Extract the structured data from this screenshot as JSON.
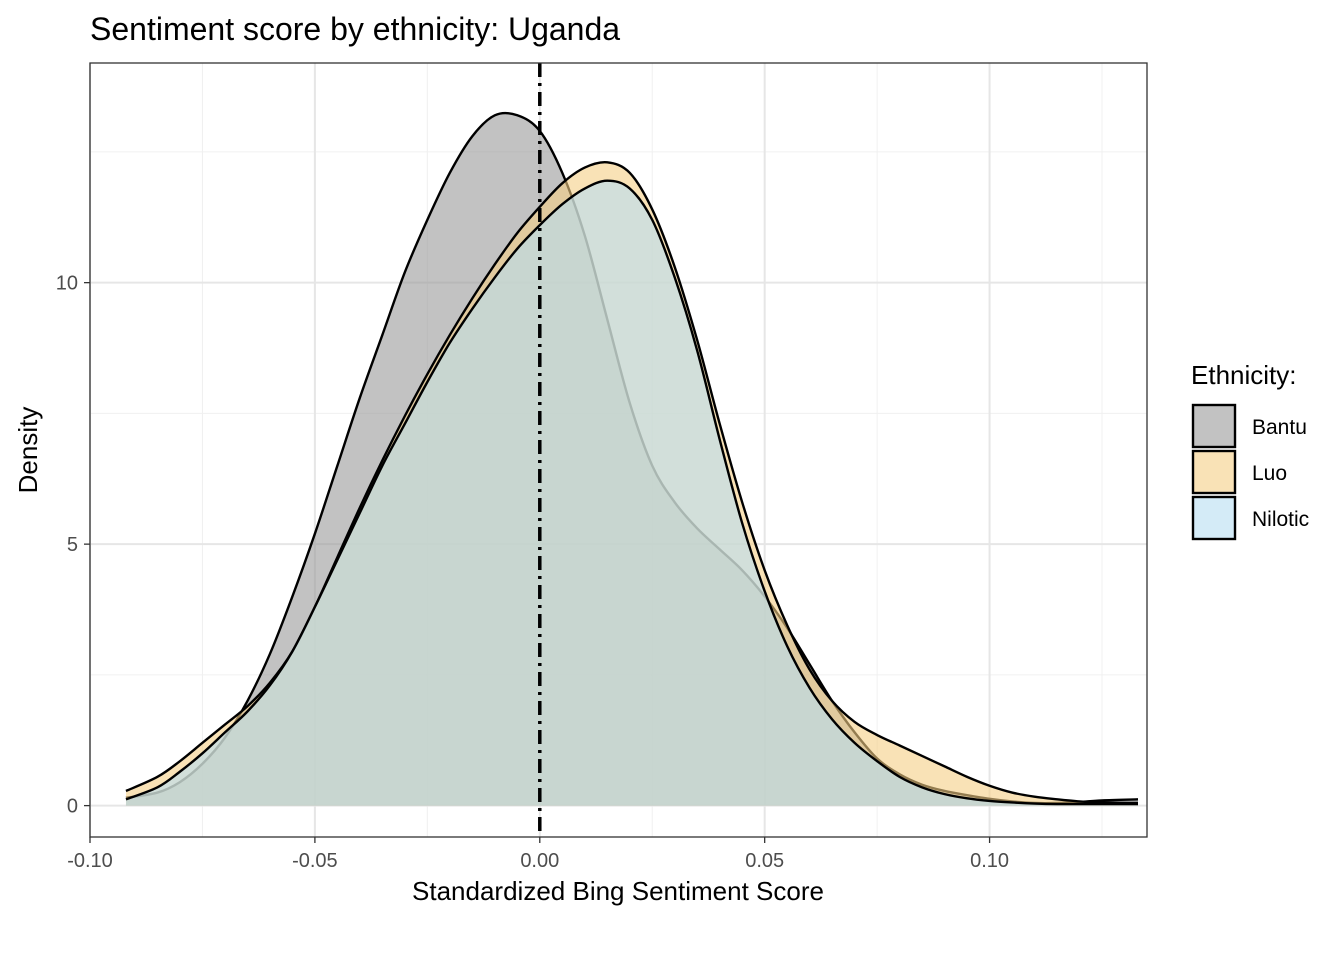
{
  "chart_data": {
    "type": "area",
    "title": "Sentiment score by ethnicity: Uganda",
    "xlabel": "Standardized Bing Sentiment Score",
    "ylabel": "Density",
    "xlim": [
      -0.1,
      0.135
    ],
    "ylim": [
      -0.6,
      14.2
    ],
    "x_ticks": [
      -0.1,
      -0.05,
      0.0,
      0.05,
      0.1
    ],
    "x_tick_labels": [
      "-0.10",
      "-0.05",
      "0.00",
      "0.05",
      "0.10"
    ],
    "y_ticks": [
      0,
      5,
      10
    ],
    "y_tick_labels": [
      "0",
      "5",
      "10"
    ],
    "grid": true,
    "legend": {
      "title": "Ethnicity:",
      "placement": "right"
    },
    "reference_line": {
      "x": 0.0,
      "style": "dot-dash"
    },
    "series": [
      {
        "name": "Bantu",
        "color": "#999999",
        "x": [
          -0.092,
          -0.085,
          -0.08,
          -0.075,
          -0.07,
          -0.065,
          -0.06,
          -0.055,
          -0.05,
          -0.045,
          -0.04,
          -0.035,
          -0.03,
          -0.025,
          -0.02,
          -0.015,
          -0.01,
          -0.005,
          0.0,
          0.005,
          0.01,
          0.015,
          0.02,
          0.025,
          0.03,
          0.035,
          0.04,
          0.045,
          0.05,
          0.055,
          0.06,
          0.065,
          0.07,
          0.075,
          0.08,
          0.085,
          0.09,
          0.095,
          0.1,
          0.105,
          0.11,
          0.115,
          0.12,
          0.125,
          0.133
        ],
        "y": [
          0.15,
          0.25,
          0.45,
          0.8,
          1.3,
          2.0,
          2.9,
          4.0,
          5.2,
          6.5,
          7.8,
          9.0,
          10.2,
          11.2,
          12.1,
          12.8,
          13.2,
          13.2,
          12.9,
          12.1,
          10.9,
          9.3,
          7.7,
          6.5,
          5.8,
          5.3,
          4.9,
          4.5,
          4.0,
          3.4,
          2.7,
          2.0,
          1.4,
          0.9,
          0.6,
          0.4,
          0.28,
          0.2,
          0.13,
          0.08,
          0.05,
          0.05,
          0.07,
          0.1,
          0.12
        ]
      },
      {
        "name": "Luo",
        "color": "#f5cf86",
        "x": [
          -0.092,
          -0.085,
          -0.08,
          -0.075,
          -0.07,
          -0.065,
          -0.06,
          -0.055,
          -0.05,
          -0.045,
          -0.04,
          -0.035,
          -0.03,
          -0.025,
          -0.02,
          -0.015,
          -0.01,
          -0.005,
          0.0,
          0.005,
          0.01,
          0.015,
          0.02,
          0.025,
          0.03,
          0.035,
          0.04,
          0.045,
          0.05,
          0.055,
          0.06,
          0.065,
          0.07,
          0.075,
          0.08,
          0.085,
          0.09,
          0.095,
          0.1,
          0.105,
          0.11,
          0.115,
          0.12,
          0.125,
          0.133
        ],
        "y": [
          0.28,
          0.55,
          0.85,
          1.2,
          1.55,
          1.9,
          2.35,
          2.95,
          3.8,
          4.75,
          5.7,
          6.6,
          7.45,
          8.25,
          9.0,
          9.7,
          10.35,
          10.95,
          11.45,
          11.9,
          12.2,
          12.3,
          12.1,
          11.4,
          10.3,
          8.9,
          7.3,
          5.8,
          4.5,
          3.45,
          2.6,
          2.0,
          1.6,
          1.35,
          1.15,
          0.95,
          0.75,
          0.55,
          0.38,
          0.25,
          0.17,
          0.12,
          0.08,
          0.06,
          0.05
        ]
      },
      {
        "name": "Nilotic",
        "color": "#b8ddf2",
        "x": [
          -0.092,
          -0.085,
          -0.08,
          -0.075,
          -0.07,
          -0.065,
          -0.06,
          -0.055,
          -0.05,
          -0.045,
          -0.04,
          -0.035,
          -0.03,
          -0.025,
          -0.02,
          -0.015,
          -0.01,
          -0.005,
          0.0,
          0.005,
          0.01,
          0.015,
          0.02,
          0.025,
          0.03,
          0.035,
          0.04,
          0.045,
          0.05,
          0.055,
          0.06,
          0.065,
          0.07,
          0.075,
          0.08,
          0.085,
          0.09,
          0.095,
          0.1,
          0.105,
          0.11,
          0.115,
          0.12,
          0.125,
          0.133
        ],
        "y": [
          0.12,
          0.35,
          0.65,
          1.0,
          1.4,
          1.8,
          2.3,
          2.95,
          3.8,
          4.7,
          5.6,
          6.5,
          7.3,
          8.1,
          8.85,
          9.5,
          10.1,
          10.65,
          11.1,
          11.5,
          11.8,
          11.95,
          11.8,
          11.2,
          10.1,
          8.7,
          7.0,
          5.4,
          4.1,
          3.05,
          2.25,
          1.65,
          1.2,
          0.85,
          0.55,
          0.35,
          0.22,
          0.14,
          0.09,
          0.06,
          0.04,
          0.03,
          0.03,
          0.03,
          0.03
        ]
      }
    ]
  }
}
